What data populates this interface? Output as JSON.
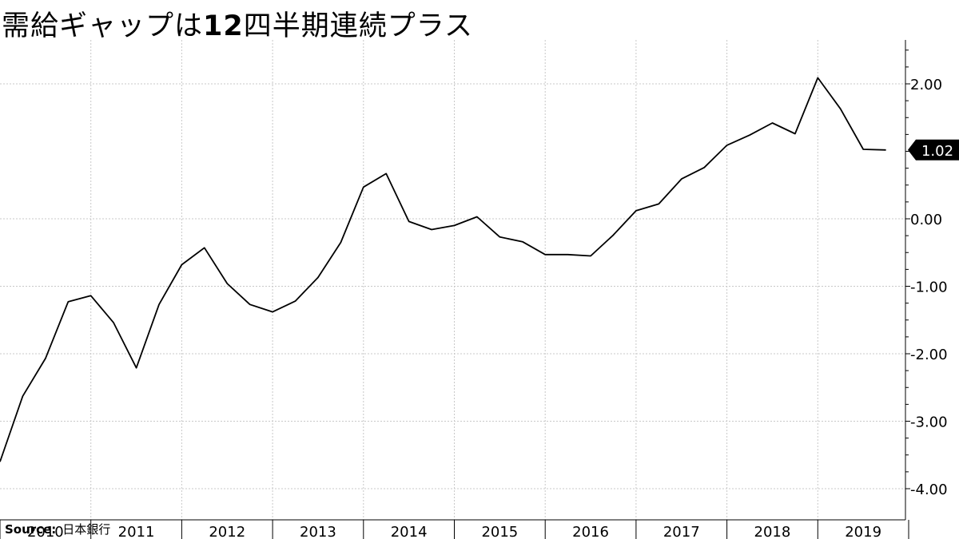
{
  "title": {
    "part1": "需給ギャップは",
    "number": "12",
    "part2": "四半期連続プラス"
  },
  "source": {
    "label": "Source:",
    "value": "日本銀行"
  },
  "last_value_label": "1.02",
  "chart_data": {
    "type": "line",
    "title": "需給ギャップは12四半期連続プラス",
    "xlabel": "",
    "ylabel": "",
    "x_tick_labels": [
      "2010",
      "2011",
      "2012",
      "2013",
      "2014",
      "2015",
      "2016",
      "2017",
      "2018",
      "2019"
    ],
    "y_tick_labels": [
      "2.00",
      "0.00",
      "-1.00",
      "-2.00",
      "-3.00",
      "-4.00"
    ],
    "y_ticks": [
      2,
      0,
      -1,
      -2,
      -3,
      -4
    ],
    "ylim": [
      -4.1,
      2.6
    ],
    "grid": true,
    "y_axis_side": "right",
    "line_color": "#000000",
    "series": [
      {
        "values": [
          -3.6,
          -2.63,
          -2.07,
          -1.23,
          -1.14,
          -1.54,
          -2.21,
          -1.27,
          -0.68,
          -0.43,
          -0.96,
          -1.27,
          -1.38,
          -1.22,
          -0.87,
          -0.35,
          0.47,
          0.67,
          -0.04,
          -0.16,
          -0.1,
          0.03,
          -0.27,
          -0.34,
          -0.53,
          -0.53,
          -0.55,
          -0.24,
          0.12,
          0.22,
          0.59,
          0.76,
          1.09,
          1.24,
          1.42,
          1.26,
          2.09,
          1.63,
          1.03,
          1.02
        ]
      }
    ]
  }
}
